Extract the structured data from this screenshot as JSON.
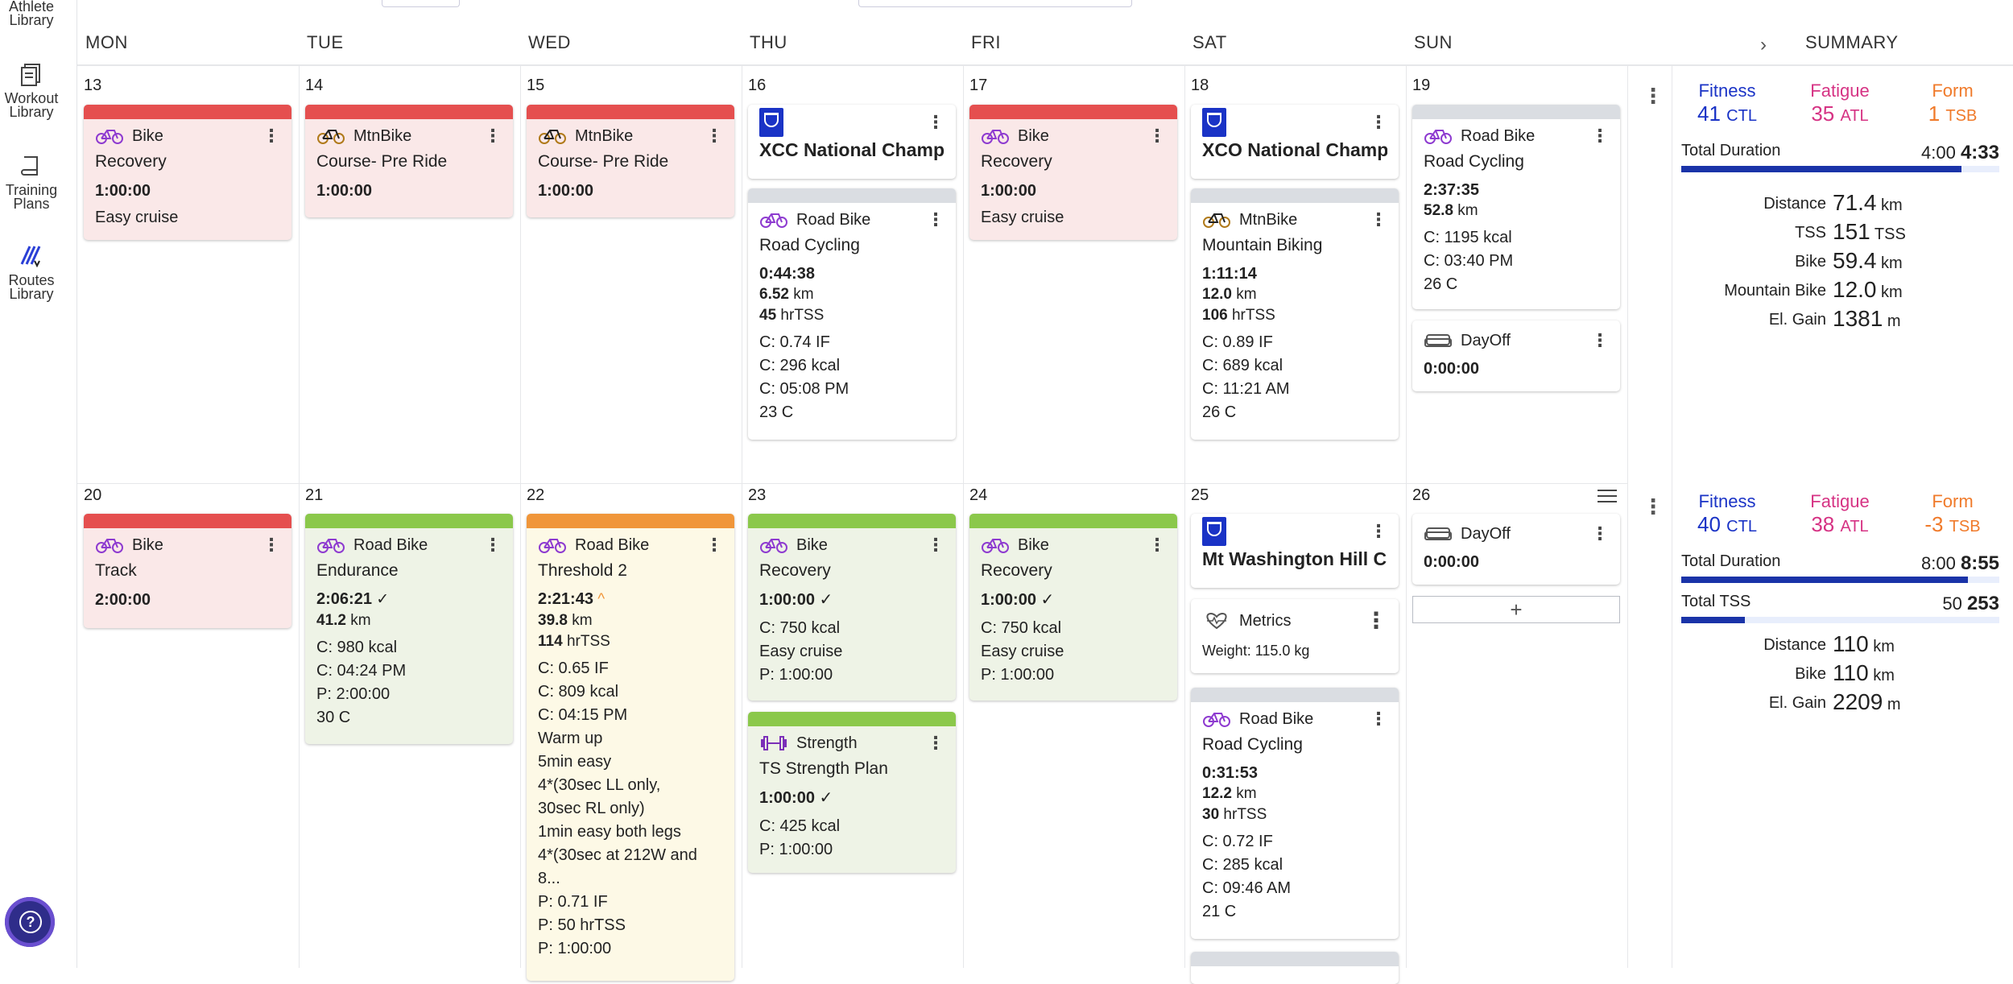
{
  "sidebar": {
    "items": [
      {
        "label1": "Athlete",
        "label2": "Library"
      },
      {
        "label1": "Workout",
        "label2": "Library"
      },
      {
        "label1": "Training",
        "label2": "Plans"
      },
      {
        "label1": "Routes",
        "label2": "Library"
      }
    ]
  },
  "header": {
    "days": [
      "MON",
      "TUE",
      "WED",
      "THU",
      "FRI",
      "SAT",
      "SUN"
    ],
    "summary": "SUMMARY"
  },
  "week1": {
    "dates": [
      "13",
      "14",
      "15",
      "16",
      "17",
      "18",
      "19"
    ],
    "mon": {
      "sport": "Bike",
      "title": "Recovery",
      "duration": "1:00:00",
      "note": "Easy cruise"
    },
    "tue": {
      "sport": "MtnBike",
      "title": "Course- Pre Ride",
      "duration": "1:00:00"
    },
    "wed": {
      "sport": "MtnBike",
      "title": "Course- Pre Ride",
      "duration": "1:00:00"
    },
    "thu_event": {
      "title": "XCC National Champio"
    },
    "thu": {
      "sport": "Road Bike",
      "title": "Road Cycling",
      "duration": "0:44:38",
      "dist_val": "6.52",
      "dist_unit": "km",
      "tss_val": "45",
      "tss_unit": "hrTSS",
      "l1": "C: 0.74 IF",
      "l2": "C: 296 kcal",
      "l3": "C: 05:08 PM",
      "l4": "23 C"
    },
    "fri": {
      "sport": "Bike",
      "title": "Recovery",
      "duration": "1:00:00",
      "note": "Easy cruise"
    },
    "sat_event": {
      "title": "XCO National Champio"
    },
    "sat": {
      "sport": "MtnBike",
      "title": "Mountain Biking",
      "duration": "1:11:14",
      "dist_val": "12.0",
      "dist_unit": "km",
      "tss_val": "106",
      "tss_unit": "hrTSS",
      "l1": "C: 0.89 IF",
      "l2": "C: 689 kcal",
      "l3": "C: 11:21 AM",
      "l4": "26 C"
    },
    "sun": {
      "sport": "Road Bike",
      "title": "Road Cycling",
      "duration": "2:37:35",
      "dist_val": "52.8",
      "dist_unit": "km",
      "l1": "C: 1195 kcal",
      "l2": "C: 03:40 PM",
      "l3": "26 C"
    },
    "sun_off": {
      "sport": "DayOff",
      "duration": "0:00:00"
    }
  },
  "week2": {
    "dates": [
      "20",
      "21",
      "22",
      "23",
      "24",
      "25",
      "26"
    ],
    "mon": {
      "sport": "Bike",
      "title": "Track",
      "duration": "2:00:00"
    },
    "tue": {
      "sport": "Road Bike",
      "title": "Endurance",
      "duration": "2:06:21",
      "dist_val": "41.2",
      "dist_unit": "km",
      "l1": "C: 980 kcal",
      "l2": "C: 04:24 PM",
      "l3": "P: 2:00:00",
      "l4": "30 C"
    },
    "wed": {
      "sport": "Road Bike",
      "title": "Threshold 2",
      "duration": "2:21:43",
      "dist_val": "39.8",
      "dist_unit": "km",
      "tss_val": "114",
      "tss_unit": "hrTSS",
      "lines": [
        "C: 0.65 IF",
        "C: 809 kcal",
        "C: 04:15 PM",
        "Warm up",
        "5min easy",
        "4*(30sec LL only,",
        "30sec RL only)",
        "1min easy both legs",
        "4*(30sec at 212W and",
        "8...",
        "P: 0.71 IF",
        "P: 50 hrTSS",
        "P: 1:00:00"
      ]
    },
    "thu": {
      "sport": "Bike",
      "title": "Recovery",
      "duration": "1:00:00",
      "l1": "C: 750 kcal",
      "l2": "Easy cruise",
      "l3": "P: 1:00:00"
    },
    "thu2": {
      "sport": "Strength",
      "title": "TS Strength Plan",
      "duration": "1:00:00",
      "l1": "C: 425 kcal",
      "l2": "P: 1:00:00"
    },
    "fri": {
      "sport": "Bike",
      "title": "Recovery",
      "duration": "1:00:00",
      "l1": "C: 750 kcal",
      "l2": "Easy cruise",
      "l3": "P: 1:00:00"
    },
    "sat_event": {
      "title": "Mt Washington Hill Clir"
    },
    "sat_metrics": {
      "label": "Metrics",
      "weight": "Weight: 115.0 kg"
    },
    "sat": {
      "sport": "Road Bike",
      "title": "Road Cycling",
      "duration": "0:31:53",
      "dist_val": "12.2",
      "dist_unit": "km",
      "tss_val": "30",
      "tss_unit": "hrTSS",
      "l1": "C: 0.72 IF",
      "l2": "C: 285 kcal",
      "l3": "C: 09:46 AM",
      "l4": "21 C"
    },
    "sun_off": {
      "sport": "DayOff",
      "duration": "0:00:00"
    }
  },
  "summary1": {
    "fitness_label": "Fitness",
    "fitness_val": "41",
    "fitness_unit": "CTL",
    "fatigue_label": "Fatigue",
    "fatigue_val": "35",
    "fatigue_unit": "ATL",
    "form_label": "Form",
    "form_val": "1",
    "form_unit": "TSB",
    "total_label": "Total Duration",
    "total_planned": "4:00",
    "total_actual": "4:33",
    "total_fraction": 0.88,
    "metrics": [
      {
        "label": "Distance",
        "value": "71.4",
        "unit": "km"
      },
      {
        "label": "TSS",
        "value": "151",
        "unit": "TSS"
      },
      {
        "label": "Bike",
        "value": "59.4",
        "unit": "km"
      },
      {
        "label": "Mountain Bike",
        "value": "12.0",
        "unit": "km"
      },
      {
        "label": "El. Gain",
        "value": "1381",
        "unit": "m"
      }
    ]
  },
  "summary2": {
    "fitness_label": "Fitness",
    "fitness_val": "40",
    "fitness_unit": "CTL",
    "fatigue_label": "Fatigue",
    "fatigue_val": "38",
    "fatigue_unit": "ATL",
    "form_label": "Form",
    "form_val": "-3",
    "form_unit": "TSB",
    "total_label": "Total Duration",
    "total_planned": "8:00",
    "total_actual": "8:55",
    "total_fraction": 0.9,
    "tss_label": "Total TSS",
    "tss_planned": "50",
    "tss_actual": "253",
    "tss_fraction": 0.2,
    "metrics": [
      {
        "label": "Distance",
        "value": "110",
        "unit": "km"
      },
      {
        "label": "Bike",
        "value": "110",
        "unit": "km"
      },
      {
        "label": "El. Gain",
        "value": "2209",
        "unit": "m"
      }
    ]
  },
  "colors": {
    "fitness": "#1a33c6",
    "fatigue": "#d63384",
    "form": "#f07a2a"
  },
  "actions": {
    "kebab": "⋮",
    "add": "+"
  }
}
